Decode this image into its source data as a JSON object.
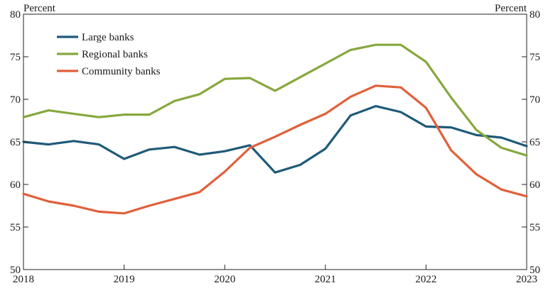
{
  "chart_data": {
    "type": "line",
    "title": "",
    "xlabel": "",
    "ylabel_left": "Percent",
    "ylabel_right": "Percent",
    "xlim": [
      2018,
      2023
    ],
    "ylim": [
      50,
      80
    ],
    "x_ticks": [
      "2018",
      "2019",
      "2020",
      "2021",
      "2022",
      "2023"
    ],
    "y_ticks": [
      "50",
      "55",
      "60",
      "65",
      "70",
      "75",
      "80"
    ],
    "grid": false,
    "legend": "top-left",
    "x": [
      2018.0,
      2018.25,
      2018.5,
      2018.75,
      2019.0,
      2019.25,
      2019.5,
      2019.75,
      2020.0,
      2020.25,
      2020.5,
      2020.75,
      2021.0,
      2021.25,
      2021.5,
      2021.75,
      2022.0,
      2022.25,
      2022.5,
      2022.75,
      2023.0
    ],
    "series": [
      {
        "name": "Large banks",
        "color": "#1f5a78",
        "values": [
          65.0,
          64.7,
          65.1,
          64.7,
          63.0,
          64.1,
          64.4,
          63.5,
          63.9,
          64.6,
          61.4,
          62.3,
          64.2,
          68.1,
          69.2,
          68.5,
          66.8,
          66.7,
          65.8,
          65.5,
          64.5
        ]
      },
      {
        "name": "Regional banks",
        "color": "#86a83e",
        "values": [
          67.9,
          68.7,
          68.3,
          67.9,
          68.2,
          68.2,
          69.8,
          70.6,
          72.4,
          72.5,
          71.0,
          72.6,
          74.2,
          75.8,
          76.4,
          76.4,
          74.4,
          70.2,
          66.4,
          64.3,
          63.4
        ]
      },
      {
        "name": "Community banks",
        "color": "#e0603a",
        "values": [
          58.9,
          58.0,
          57.5,
          56.8,
          56.6,
          57.5,
          58.3,
          59.1,
          61.5,
          64.3,
          65.6,
          67.0,
          68.3,
          70.3,
          71.6,
          71.4,
          69.0,
          64.0,
          61.2,
          59.4,
          58.6
        ]
      }
    ]
  }
}
